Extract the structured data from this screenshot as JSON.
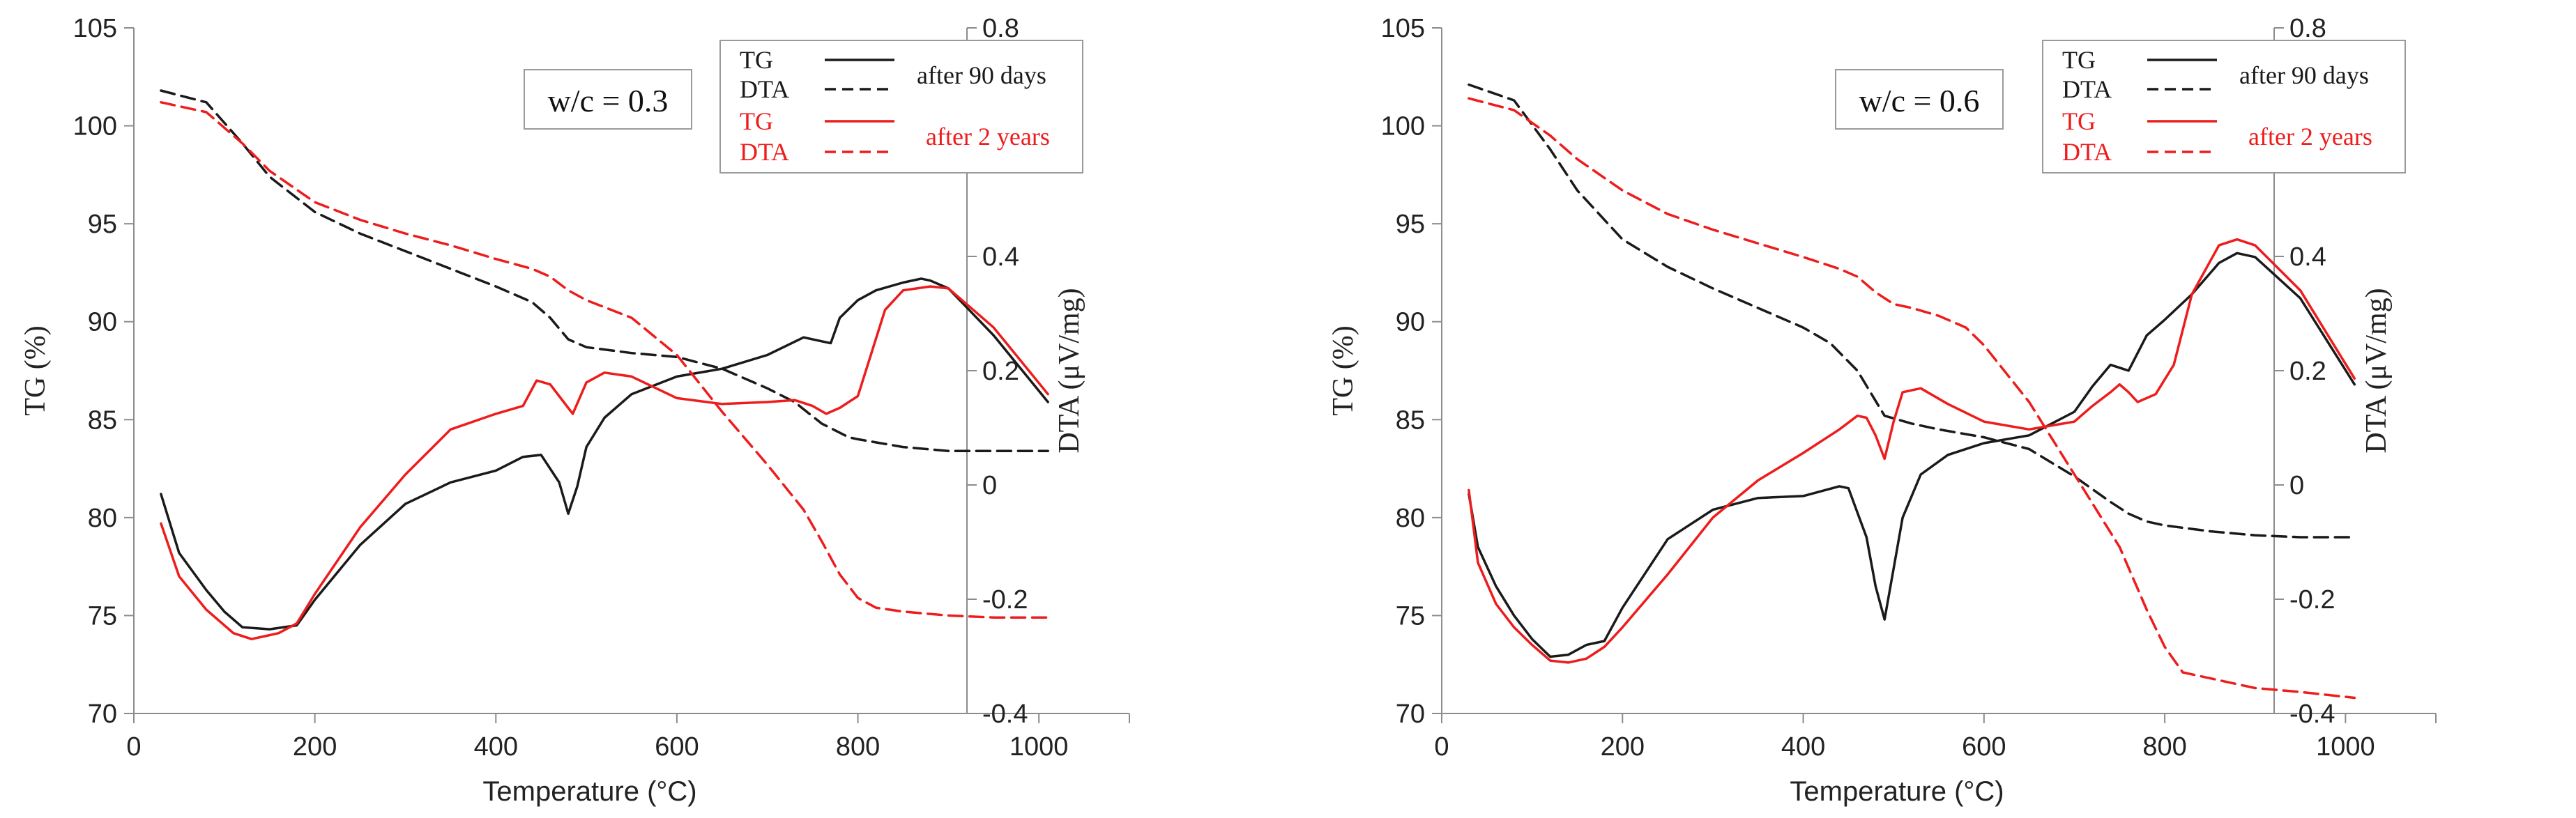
{
  "chart_data": [
    {
      "type": "line",
      "annotation": "w/c = 0.3",
      "xlabel": "Temperature (°C)",
      "ylabel_left": "TG (%)",
      "ylabel_right": "DTA (μV/mg)",
      "xlim": [
        0,
        1100
      ],
      "ylim_left": [
        70,
        105
      ],
      "ylim_right": [
        -0.4,
        0.8
      ],
      "xticks": [
        "0",
        "200",
        "400",
        "600",
        "800",
        "1000"
      ],
      "yticks_left": [
        "70",
        "75",
        "80",
        "85",
        "90",
        "95",
        "100",
        "105"
      ],
      "yticks_right": [
        "-0.4",
        "-0.2",
        "0",
        "0.2",
        "0.4",
        "0.6",
        "0.8"
      ],
      "grid": false,
      "legend": {
        "placement": "top-right",
        "entries": [
          {
            "label": "TG",
            "group": "after 90 days",
            "color": "#1a1a1a",
            "dash": "solid"
          },
          {
            "label": "DTA",
            "group": "after 90 days",
            "color": "#1a1a1a",
            "dash": "dashed"
          },
          {
            "label": "TG",
            "group": "after 2 years",
            "color": "#ee1c1c",
            "dash": "solid"
          },
          {
            "label": "DTA",
            "group": "after 2 years",
            "color": "#ee1c1c",
            "dash": "dashed"
          }
        ]
      },
      "series": [
        {
          "axis": "left",
          "color": "#1a1a1a",
          "dash": "solid",
          "x": [
            30,
            50,
            80,
            100,
            120,
            150,
            180,
            200,
            250,
            300,
            350,
            400,
            430,
            450,
            470,
            480,
            490,
            500,
            520,
            550,
            600,
            650,
            700,
            740,
            760,
            770,
            780,
            800,
            820,
            850,
            870,
            880,
            900,
            950,
            1010
          ],
          "y": [
            81.2,
            78.2,
            76.3,
            75.2,
            74.4,
            74.3,
            74.5,
            75.8,
            78.6,
            80.7,
            81.8,
            82.4,
            83.1,
            83.2,
            81.8,
            80.2,
            81.6,
            83.6,
            85.1,
            86.3,
            87.2,
            87.6,
            88.3,
            89.2,
            89.0,
            88.9,
            90.2,
            91.1,
            91.6,
            92.0,
            92.2,
            92.1,
            91.7,
            89.3,
            85.9
          ]
        },
        {
          "axis": "left",
          "color": "#1a1a1a",
          "dash": "dashed",
          "x": [
            30,
            80,
            120,
            150,
            200,
            250,
            300,
            350,
            400,
            440,
            460,
            480,
            500,
            550,
            600,
            650,
            700,
            730,
            760,
            790,
            800,
            850,
            900,
            950,
            1010
          ],
          "y": [
            101.8,
            101.2,
            99.1,
            97.4,
            95.6,
            94.5,
            93.6,
            92.7,
            91.8,
            91.0,
            90.2,
            89.1,
            88.7,
            88.4,
            88.2,
            87.6,
            86.6,
            85.9,
            84.8,
            84.1,
            84.0,
            83.6,
            83.4,
            83.4,
            83.4
          ]
        },
        {
          "axis": "left",
          "color": "#ee1c1c",
          "dash": "solid",
          "x": [
            30,
            50,
            80,
            110,
            130,
            160,
            180,
            200,
            250,
            300,
            350,
            400,
            430,
            445,
            460,
            475,
            485,
            500,
            520,
            550,
            600,
            650,
            700,
            730,
            750,
            765,
            780,
            800,
            815,
            830,
            850,
            880,
            900,
            950,
            1010
          ],
          "y": [
            79.7,
            77.0,
            75.3,
            74.1,
            73.8,
            74.1,
            74.6,
            76.1,
            79.5,
            82.2,
            84.5,
            85.3,
            85.7,
            87.0,
            86.8,
            85.9,
            85.3,
            86.9,
            87.4,
            87.2,
            86.1,
            85.8,
            85.9,
            86.0,
            85.7,
            85.3,
            85.6,
            86.2,
            88.4,
            90.6,
            91.6,
            91.8,
            91.7,
            89.7,
            86.3
          ]
        },
        {
          "axis": "left",
          "color": "#ee1c1c",
          "dash": "dashed",
          "x": [
            30,
            80,
            120,
            150,
            200,
            250,
            300,
            350,
            400,
            440,
            460,
            480,
            500,
            550,
            600,
            650,
            700,
            740,
            760,
            780,
            800,
            820,
            850,
            900,
            950,
            1010
          ],
          "y": [
            101.2,
            100.7,
            99.1,
            97.7,
            96.1,
            95.2,
            94.5,
            93.9,
            93.2,
            92.7,
            92.3,
            91.6,
            91.1,
            90.2,
            88.3,
            85.4,
            82.7,
            80.4,
            78.8,
            77.1,
            75.9,
            75.4,
            75.2,
            75.0,
            74.9,
            74.9
          ]
        }
      ]
    },
    {
      "type": "line",
      "annotation": "w/c = 0.6",
      "xlabel": "Temperature (°C)",
      "ylabel_left": "TG (%)",
      "ylabel_right": "DTA (μV/mg)",
      "xlim": [
        0,
        1100
      ],
      "ylim_left": [
        70,
        105
      ],
      "ylim_right": [
        -0.4,
        0.8
      ],
      "xticks": [
        "0",
        "200",
        "400",
        "600",
        "800",
        "1000"
      ],
      "yticks_left": [
        "70",
        "75",
        "80",
        "85",
        "90",
        "95",
        "100",
        "105"
      ],
      "yticks_right": [
        "-0.4",
        "-0.2",
        "0",
        "0.2",
        "0.4",
        "0.6",
        "0.8"
      ],
      "grid": false,
      "legend": {
        "placement": "top-right",
        "entries": [
          {
            "label": "TG",
            "group": "after 90 days",
            "color": "#1a1a1a",
            "dash": "solid"
          },
          {
            "label": "DTA",
            "group": "after 90 days",
            "color": "#1a1a1a",
            "dash": "dashed"
          },
          {
            "label": "TG",
            "group": "after 2 years",
            "color": "#ee1c1c",
            "dash": "solid"
          },
          {
            "label": "DTA",
            "group": "after 2 years",
            "color": "#ee1c1c",
            "dash": "dashed"
          }
        ]
      },
      "series": [
        {
          "axis": "left",
          "color": "#1a1a1a",
          "dash": "solid",
          "x": [
            30,
            40,
            60,
            80,
            100,
            120,
            140,
            160,
            180,
            200,
            250,
            300,
            350,
            400,
            440,
            450,
            470,
            480,
            490,
            500,
            510,
            530,
            560,
            600,
            650,
            700,
            720,
            740,
            760,
            780,
            800,
            830,
            860,
            880,
            900,
            950,
            1010
          ],
          "y": [
            81.2,
            78.5,
            76.5,
            75.0,
            73.8,
            72.9,
            73.0,
            73.5,
            73.7,
            75.4,
            78.9,
            80.4,
            81.0,
            81.1,
            81.6,
            81.5,
            79.0,
            76.5,
            74.8,
            77.4,
            80.0,
            82.2,
            83.2,
            83.8,
            84.2,
            85.4,
            86.7,
            87.8,
            87.5,
            89.3,
            90.1,
            91.4,
            93.0,
            93.5,
            93.3,
            91.2,
            86.8
          ]
        },
        {
          "axis": "left",
          "color": "#1a1a1a",
          "dash": "dashed",
          "x": [
            30,
            80,
            120,
            150,
            200,
            250,
            300,
            350,
            400,
            430,
            460,
            490,
            520,
            550,
            600,
            650,
            700,
            740,
            760,
            780,
            800,
            850,
            900,
            950,
            1010
          ],
          "y": [
            102.1,
            101.3,
            98.8,
            96.7,
            94.2,
            92.8,
            91.7,
            90.7,
            89.7,
            88.9,
            87.5,
            85.2,
            84.8,
            84.5,
            84.1,
            83.5,
            82.1,
            80.8,
            80.2,
            79.8,
            79.6,
            79.3,
            79.1,
            79.0,
            79.0
          ]
        },
        {
          "axis": "left",
          "color": "#ee1c1c",
          "dash": "solid",
          "x": [
            30,
            40,
            60,
            80,
            100,
            120,
            140,
            160,
            180,
            200,
            250,
            300,
            350,
            400,
            440,
            460,
            470,
            480,
            490,
            500,
            510,
            530,
            560,
            600,
            650,
            700,
            720,
            740,
            750,
            760,
            770,
            790,
            810,
            830,
            860,
            880,
            900,
            950,
            1010
          ],
          "y": [
            81.4,
            77.7,
            75.6,
            74.4,
            73.5,
            72.7,
            72.6,
            72.8,
            73.4,
            74.4,
            77.1,
            80.0,
            81.9,
            83.3,
            84.5,
            85.2,
            85.1,
            84.2,
            83.0,
            84.9,
            86.4,
            86.6,
            85.8,
            84.9,
            84.5,
            84.9,
            85.7,
            86.4,
            86.8,
            86.4,
            85.9,
            86.3,
            87.8,
            91.4,
            93.9,
            94.2,
            93.9,
            91.6,
            87.1
          ]
        },
        {
          "axis": "left",
          "color": "#ee1c1c",
          "dash": "dashed",
          "x": [
            30,
            80,
            120,
            150,
            200,
            250,
            300,
            350,
            400,
            440,
            460,
            480,
            500,
            520,
            550,
            580,
            600,
            650,
            700,
            750,
            780,
            800,
            820,
            850,
            900,
            950,
            1010
          ],
          "y": [
            101.4,
            100.8,
            99.5,
            98.3,
            96.7,
            95.5,
            94.7,
            94.0,
            93.3,
            92.7,
            92.3,
            91.5,
            90.9,
            90.7,
            90.3,
            89.7,
            88.8,
            85.9,
            82.2,
            78.5,
            75.3,
            73.4,
            72.1,
            71.8,
            71.3,
            71.1,
            70.8
          ]
        }
      ]
    }
  ]
}
